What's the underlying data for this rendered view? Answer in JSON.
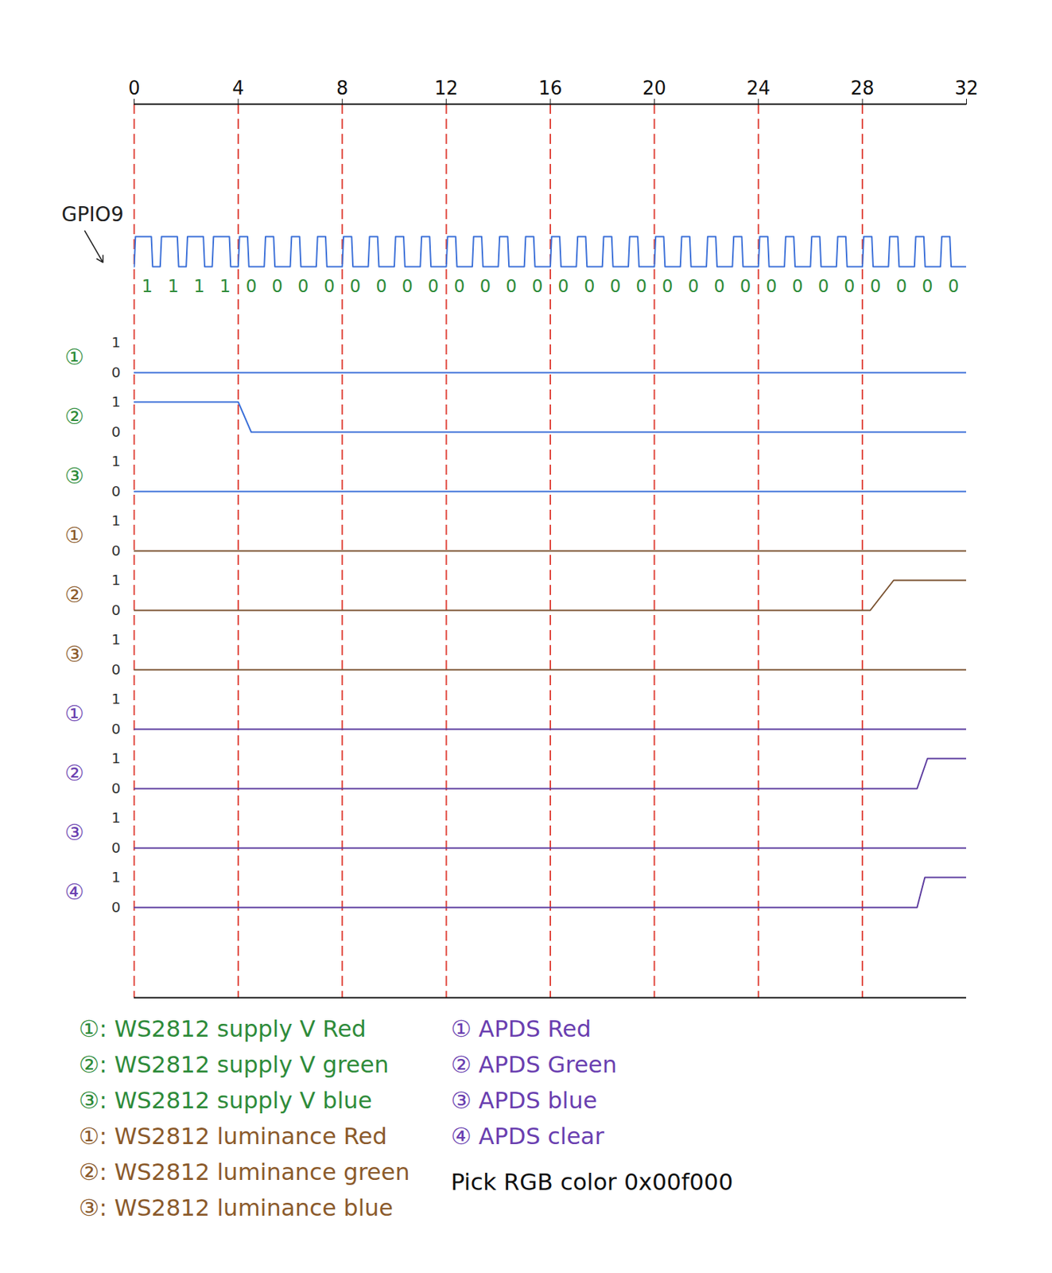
{
  "chart_data": {
    "type": "timing",
    "xlim": [
      0,
      32
    ],
    "xticks": [
      0,
      4,
      8,
      12,
      16,
      20,
      24,
      28,
      32
    ],
    "yticks": [
      0,
      1
    ],
    "grid": true,
    "signal": {
      "name": "GPIO9",
      "color": "#3a6fd8",
      "bits": [
        1,
        1,
        1,
        1,
        0,
        0,
        0,
        0,
        0,
        0,
        0,
        0,
        0,
        0,
        0,
        0,
        0,
        0,
        0,
        0,
        0,
        0,
        0,
        0,
        0,
        0,
        0,
        0,
        0,
        0,
        0,
        0
      ]
    },
    "groups": [
      {
        "color": "#2e8b3a",
        "series": [
          {
            "key": "①",
            "name": "①: WS2812 supply V Red",
            "color": "#3a6fd8",
            "x": [
              0,
              32
            ],
            "values": [
              0,
              0
            ]
          },
          {
            "key": "②",
            "name": "②: WS2812 supply V green",
            "color": "#3a6fd8",
            "x": [
              0,
              4,
              4.5,
              32
            ],
            "values": [
              1,
              1,
              0,
              0
            ]
          },
          {
            "key": "③",
            "name": "③: WS2812 supply V blue",
            "color": "#3a6fd8",
            "x": [
              0,
              32
            ],
            "values": [
              0,
              0
            ]
          }
        ]
      },
      {
        "color": "#8b5a2b",
        "series": [
          {
            "key": "①",
            "name": "①: WS2812 luminance Red",
            "color": "#7a5230",
            "x": [
              0,
              32
            ],
            "values": [
              0,
              0
            ]
          },
          {
            "key": "②",
            "name": "②: WS2812 luminance green",
            "color": "#7a5230",
            "x": [
              0,
              28.3,
              29.2,
              32
            ],
            "values": [
              0,
              0,
              1,
              1
            ]
          },
          {
            "key": "③",
            "name": "③: WS2812 luminance blue",
            "color": "#7a5230",
            "x": [
              0,
              32
            ],
            "values": [
              0,
              0
            ]
          }
        ]
      },
      {
        "color": "#6a3fb0",
        "series": [
          {
            "key": "①",
            "name": "① APDS Red",
            "color": "#5b3a9e",
            "x": [
              0,
              32
            ],
            "values": [
              0,
              0
            ]
          },
          {
            "key": "②",
            "name": "② APDS Green",
            "color": "#5b3a9e",
            "x": [
              0,
              30.1,
              30.5,
              32
            ],
            "values": [
              0,
              0,
              1,
              1
            ]
          },
          {
            "key": "③",
            "name": "③ APDS blue",
            "color": "#5b3a9e",
            "x": [
              0,
              32
            ],
            "values": [
              0,
              0
            ]
          },
          {
            "key": "④",
            "name": "④ APDS clear",
            "color": "#5b3a9e",
            "x": [
              0,
              30.1,
              30.4,
              32
            ],
            "values": [
              0,
              0,
              1,
              1
            ]
          }
        ]
      }
    ],
    "annotation": "Pick RGB color 0x00f000"
  }
}
